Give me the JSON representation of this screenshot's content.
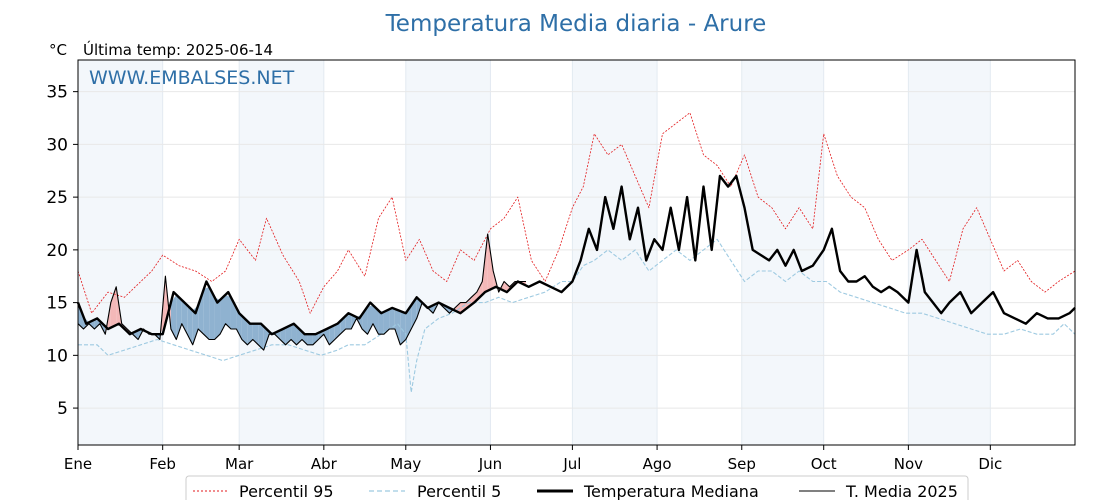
{
  "chart_data": {
    "type": "line",
    "title": "Temperatura Media diaria - Arure",
    "unit": "°C",
    "subtitle": "Última temp: 2025-06-14",
    "watermark": "WWW.EMBALSES.NET",
    "ylim": [
      1.5,
      38
    ],
    "yticks": [
      5,
      10,
      15,
      20,
      25,
      30,
      35
    ],
    "xlim": [
      1,
      366
    ],
    "months": [
      {
        "label": "Ene",
        "day": 1
      },
      {
        "label": "Feb",
        "day": 32
      },
      {
        "label": "Mar",
        "day": 60
      },
      {
        "label": "Abr",
        "day": 91
      },
      {
        "label": "May",
        "day": 121
      },
      {
        "label": "Jun",
        "day": 152
      },
      {
        "label": "Jul",
        "day": 182
      },
      {
        "label": "Ago",
        "day": 213
      },
      {
        "label": "Sep",
        "day": 244
      },
      {
        "label": "Oct",
        "day": 274
      },
      {
        "label": "Nov",
        "day": 305
      },
      {
        "label": "Dic",
        "day": 335
      }
    ],
    "grid": true,
    "legend_position": "bottom",
    "series": [
      {
        "name": "Percentil 95",
        "color": "#e31a1c",
        "style": "dotted",
        "x": [
          1,
          6,
          12,
          18,
          24,
          28,
          32,
          38,
          44,
          50,
          55,
          60,
          66,
          70,
          76,
          82,
          86,
          91,
          96,
          100,
          106,
          111,
          116,
          121,
          126,
          131,
          136,
          141,
          146,
          152,
          157,
          162,
          167,
          172,
          177,
          182,
          186,
          190,
          195,
          200,
          205,
          210,
          215,
          220,
          225,
          230,
          235,
          240,
          245,
          250,
          255,
          260,
          265,
          270,
          274,
          279,
          284,
          289,
          294,
          299,
          305,
          310,
          315,
          320,
          325,
          330,
          335,
          340,
          345,
          350,
          355,
          360,
          366
        ],
        "y": [
          18,
          14,
          16,
          15.5,
          17,
          18,
          19.5,
          18.5,
          18,
          17,
          18,
          21,
          19,
          23,
          19.5,
          17,
          14,
          16.5,
          18,
          20,
          17.5,
          23,
          25,
          19,
          21,
          18,
          17,
          20,
          19,
          22,
          23,
          25,
          19,
          17,
          20,
          24,
          26,
          31,
          29,
          30,
          27,
          24,
          31,
          32,
          33,
          29,
          28,
          26,
          29,
          25,
          24,
          22,
          24,
          22,
          31,
          27,
          25,
          24,
          21,
          19,
          20,
          21,
          19,
          17,
          22,
          24,
          21,
          18,
          19,
          17,
          16,
          17,
          18
        ]
      },
      {
        "name": "Percentil 5",
        "color": "#9ecae1",
        "style": "dashed",
        "x": [
          1,
          8,
          12,
          18,
          24,
          30,
          36,
          42,
          48,
          54,
          60,
          66,
          72,
          78,
          84,
          90,
          96,
          100,
          106,
          112,
          118,
          121,
          123,
          125,
          128,
          133,
          138,
          144,
          150,
          155,
          160,
          166,
          172,
          178,
          182,
          186,
          190,
          195,
          200,
          205,
          210,
          215,
          220,
          225,
          230,
          235,
          240,
          245,
          250,
          255,
          260,
          265,
          270,
          275,
          280,
          286,
          292,
          298,
          304,
          310,
          316,
          322,
          328,
          334,
          340,
          346,
          352,
          358,
          362,
          366
        ],
        "y": [
          11,
          11,
          10,
          10.5,
          11,
          11.5,
          11,
          10.5,
          10,
          9.5,
          10,
          10.5,
          11,
          11,
          10.5,
          10,
          10.5,
          11,
          11,
          12,
          13,
          12,
          6.5,
          9.5,
          12.5,
          13.5,
          14,
          15,
          15,
          15.5,
          15,
          15.5,
          16,
          17,
          17,
          18.5,
          19,
          20,
          19,
          20,
          18,
          19,
          20,
          19,
          20,
          21,
          19,
          17,
          18,
          18,
          17,
          18,
          17,
          17,
          16,
          15.5,
          15,
          14.5,
          14,
          14,
          13.5,
          13,
          12.5,
          12,
          12,
          12.5,
          12,
          12,
          13,
          12
        ]
      },
      {
        "name": "Temperatura Mediana",
        "color": "#000000",
        "style": "solid-thick",
        "x": [
          1,
          4,
          8,
          12,
          16,
          20,
          24,
          28,
          32,
          36,
          40,
          44,
          48,
          52,
          56,
          60,
          64,
          68,
          72,
          76,
          80,
          84,
          88,
          92,
          96,
          100,
          104,
          108,
          112,
          116,
          121,
          125,
          129,
          133,
          137,
          141,
          146,
          150,
          154,
          158,
          162,
          166,
          170,
          174,
          178,
          182,
          185,
          188,
          191,
          194,
          197,
          200,
          203,
          206,
          209,
          212,
          215,
          218,
          221,
          224,
          227,
          230,
          233,
          236,
          239,
          242,
          245,
          248,
          251,
          254,
          257,
          260,
          263,
          266,
          270,
          274,
          277,
          280,
          283,
          286,
          289,
          292,
          295,
          298,
          301,
          305,
          308,
          311,
          314,
          317,
          320,
          324,
          328,
          332,
          336,
          340,
          344,
          348,
          352,
          356,
          360,
          364,
          366
        ],
        "y": [
          15,
          13,
          13.5,
          12.5,
          13,
          12,
          12.5,
          12,
          12,
          16,
          15,
          14,
          17,
          15,
          16,
          14,
          13,
          13,
          12,
          12.5,
          13,
          12,
          12,
          12.5,
          13,
          14,
          13.5,
          15,
          14,
          14.5,
          14,
          15.5,
          14.5,
          15,
          14.5,
          14,
          15,
          16,
          16.5,
          16,
          17,
          16.5,
          17,
          16.5,
          16,
          17,
          19,
          22,
          20,
          25,
          22,
          26,
          21,
          24,
          19,
          21,
          20,
          24,
          20,
          25,
          19,
          26,
          20,
          27,
          26,
          27,
          24,
          20,
          19.5,
          19,
          20,
          18.5,
          20,
          18,
          18.5,
          20,
          22,
          18,
          17,
          17,
          17.5,
          16.5,
          16,
          16.5,
          16,
          15,
          20,
          16,
          15,
          14,
          15,
          16,
          14,
          15,
          16,
          14,
          13.5,
          13,
          14,
          13.5,
          13.5,
          14,
          14.5
        ]
      },
      {
        "name": "T. Media 2025",
        "color": "#000000",
        "style": "solid-thin",
        "x": [
          1,
          3,
          5,
          7,
          9,
          11,
          13,
          15,
          17,
          19,
          21,
          23,
          25,
          27,
          29,
          31,
          33,
          35,
          37,
          39,
          41,
          43,
          45,
          47,
          49,
          51,
          53,
          55,
          57,
          59,
          61,
          63,
          65,
          67,
          69,
          71,
          73,
          75,
          77,
          79,
          81,
          83,
          85,
          87,
          89,
          91,
          93,
          95,
          97,
          99,
          101,
          103,
          105,
          107,
          109,
          111,
          113,
          115,
          117,
          119,
          121,
          123,
          125,
          127,
          129,
          131,
          133,
          135,
          137,
          139,
          141,
          143,
          145,
          147,
          149,
          151,
          153,
          155,
          157,
          159,
          161,
          163,
          165
        ],
        "y": [
          13,
          12.5,
          13,
          12.5,
          13,
          12,
          15,
          16.5,
          13,
          12.5,
          12,
          11.5,
          12.5,
          12,
          12,
          11.5,
          17.5,
          12.5,
          11.5,
          13,
          12,
          11,
          12.5,
          12,
          11.5,
          11.5,
          12,
          13,
          12.5,
          12.5,
          11.5,
          11,
          11.5,
          11,
          10.5,
          12,
          12,
          11.5,
          11,
          11.5,
          11,
          11.5,
          11,
          11,
          11.5,
          12,
          11,
          11.5,
          12,
          12.5,
          12.5,
          13.5,
          12.5,
          12,
          13,
          12,
          12,
          12.5,
          12.5,
          11,
          11.5,
          12.5,
          13.5,
          15,
          14.5,
          14,
          15,
          14.5,
          14,
          14.5,
          15,
          15,
          15.5,
          16,
          17,
          21.5,
          18,
          16,
          17,
          16.5,
          17,
          17,
          17
        ]
      }
    ]
  }
}
